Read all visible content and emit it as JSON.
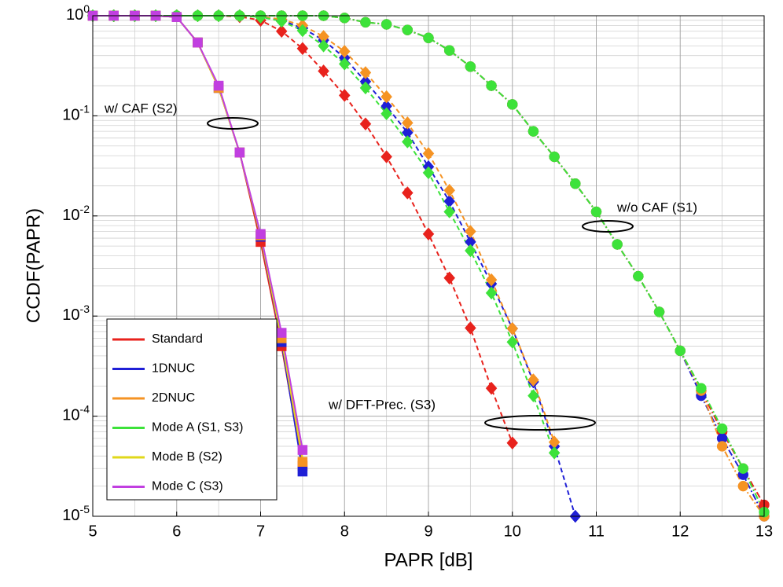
{
  "chart_data": {
    "type": "line",
    "xlabel": "PAPR [dB]",
    "ylabel": "CCDF(PAPR)",
    "xlim": [
      5,
      13
    ],
    "xticks": [
      5,
      6,
      7,
      8,
      9,
      10,
      11,
      12,
      13
    ],
    "ylim": [
      1e-05,
      1
    ],
    "log_y": true,
    "grid": true,
    "legend": "lower left",
    "yticks": [
      {
        "value": 1,
        "label": "10",
        "exponent": "0"
      },
      {
        "value": 0.1,
        "label": "10",
        "exponent": "-1"
      },
      {
        "value": 0.01,
        "label": "10",
        "exponent": "-2"
      },
      {
        "value": 0.001,
        "label": "10",
        "exponent": "-3"
      },
      {
        "value": 0.0001,
        "label": "10",
        "exponent": "-4"
      },
      {
        "value": 1e-05,
        "label": "10",
        "exponent": "-5"
      }
    ],
    "annotations": [
      "w/ CAF (S2)",
      "w/o CAF (S1)",
      "w/ DFT-Prec. (S3)"
    ],
    "series": [
      {
        "name": "Standard",
        "color": "#e8221c",
        "curves": [
          {
            "marker": "square",
            "dash": "solid",
            "x": [
              5,
              5.25,
              5.5,
              5.75,
              6,
              6.25,
              6.5,
              6.75,
              7,
              7.25,
              7.5
            ],
            "values": [
              1,
              1,
              1,
              1,
              0.97,
              0.54,
              0.19,
              0.043,
              0.0055,
              0.0005,
              3.2e-05
            ]
          },
          {
            "marker": "diamond",
            "dash": "dashed",
            "x": [
              5,
              5.25,
              5.5,
              5.75,
              6,
              6.25,
              6.5,
              6.75,
              7,
              7.25,
              7.5,
              7.75,
              8,
              8.25,
              8.5,
              8.75,
              9,
              9.25,
              9.5,
              9.75,
              10
            ],
            "values": [
              1,
              1,
              1,
              1,
              1,
              1,
              1,
              0.98,
              0.9,
              0.7,
              0.47,
              0.28,
              0.16,
              0.083,
              0.039,
              0.017,
              0.0066,
              0.0024,
              0.00076,
              0.00019,
              5.4e-05
            ]
          },
          {
            "marker": "circle",
            "dash": "dashdot",
            "x": [
              5,
              5.25,
              5.5,
              5.75,
              6,
              6.25,
              6.5,
              6.75,
              7,
              7.25,
              7.5,
              7.75,
              8,
              8.25,
              8.5,
              8.75,
              9,
              9.25,
              9.5,
              9.75,
              10,
              10.25,
              10.5,
              10.75,
              11,
              11.25,
              11.5,
              11.75,
              12,
              12.25,
              12.5,
              12.75,
              13
            ],
            "values": [
              1,
              1,
              1,
              1,
              1,
              1,
              1,
              1,
              1,
              1,
              1,
              1,
              0.95,
              0.86,
              0.82,
              0.72,
              0.6,
              0.45,
              0.31,
              0.2,
              0.13,
              0.07,
              0.039,
              0.021,
              0.011,
              0.0052,
              0.0025,
              0.0011,
              0.00045,
              0.00018,
              7e-05,
              3e-05,
              1.3e-05
            ]
          }
        ]
      },
      {
        "name": "1DNUC",
        "color": "#1f1fd6",
        "curves": [
          {
            "marker": "square",
            "dash": "solid",
            "x": [
              5,
              5.25,
              5.5,
              5.75,
              6,
              6.25,
              6.5,
              6.75,
              7,
              7.25,
              7.5
            ],
            "values": [
              1,
              1,
              1,
              1,
              0.97,
              0.54,
              0.19,
              0.043,
              0.0062,
              0.00055,
              2.8e-05
            ]
          },
          {
            "marker": "diamond",
            "dash": "dashed",
            "x": [
              5,
              5.25,
              5.5,
              5.75,
              6,
              6.25,
              6.5,
              6.75,
              7,
              7.25,
              7.5,
              7.75,
              8,
              8.25,
              8.5,
              8.75,
              9,
              9.25,
              9.5,
              9.75,
              10,
              10.25,
              10.5,
              10.75
            ],
            "values": [
              1,
              1,
              1,
              1,
              1,
              1,
              1,
              1,
              0.98,
              0.9,
              0.75,
              0.57,
              0.38,
              0.22,
              0.125,
              0.068,
              0.031,
              0.014,
              0.0055,
              0.0021,
              0.00075,
              0.00022,
              5e-05,
              1e-05
            ]
          },
          {
            "marker": "circle",
            "dash": "dashdot",
            "x": [
              5,
              5.25,
              5.5,
              5.75,
              6,
              6.25,
              6.5,
              6.75,
              7,
              7.25,
              7.5,
              7.75,
              8,
              8.25,
              8.5,
              8.75,
              9,
              9.25,
              9.5,
              9.75,
              10,
              10.25,
              10.5,
              10.75,
              11,
              11.25,
              11.5,
              11.75,
              12,
              12.25,
              12.5,
              12.75,
              13
            ],
            "values": [
              1,
              1,
              1,
              1,
              1,
              1,
              1,
              1,
              1,
              1,
              1,
              1,
              0.95,
              0.86,
              0.82,
              0.72,
              0.6,
              0.45,
              0.31,
              0.2,
              0.13,
              0.07,
              0.039,
              0.021,
              0.011,
              0.0052,
              0.0025,
              0.0011,
              0.00045,
              0.00016,
              6e-05,
              2.6e-05,
              1e-05
            ]
          }
        ]
      },
      {
        "name": "2DNUC",
        "color": "#f59323",
        "curves": [
          {
            "marker": "square",
            "dash": "solid",
            "x": [
              5,
              5.25,
              5.5,
              5.75,
              6,
              6.25,
              6.5,
              6.75,
              7,
              7.25,
              7.5
            ],
            "values": [
              1,
              1,
              1,
              1,
              0.97,
              0.54,
              0.19,
              0.043,
              0.0064,
              0.0006,
              3.5e-05
            ]
          },
          {
            "marker": "diamond",
            "dash": "dashed",
            "x": [
              5,
              5.25,
              5.5,
              5.75,
              6,
              6.25,
              6.5,
              6.75,
              7,
              7.25,
              7.5,
              7.75,
              8,
              8.25,
              8.5,
              8.75,
              9,
              9.25,
              9.5,
              9.75,
              10,
              10.25,
              10.5
            ],
            "values": [
              1,
              1,
              1,
              1,
              1,
              1,
              1,
              1,
              0.98,
              0.92,
              0.8,
              0.62,
              0.44,
              0.27,
              0.155,
              0.085,
              0.042,
              0.018,
              0.007,
              0.0023,
              0.00075,
              0.00023,
              5.5e-05
            ]
          },
          {
            "marker": "circle",
            "dash": "dashdot",
            "x": [
              5,
              5.25,
              5.5,
              5.75,
              6,
              6.25,
              6.5,
              6.75,
              7,
              7.25,
              7.5,
              7.75,
              8,
              8.25,
              8.5,
              8.75,
              9,
              9.25,
              9.5,
              9.75,
              10,
              10.25,
              10.5,
              10.75,
              11,
              11.25,
              11.5,
              11.75,
              12,
              12.25,
              12.5,
              12.75,
              13
            ],
            "values": [
              1,
              1,
              1,
              1,
              1,
              1,
              1,
              1,
              1,
              1,
              1,
              1,
              0.95,
              0.86,
              0.82,
              0.72,
              0.6,
              0.45,
              0.31,
              0.2,
              0.13,
              0.07,
              0.039,
              0.021,
              0.011,
              0.0052,
              0.0025,
              0.0011,
              0.00045,
              0.00018,
              5e-05,
              2e-05,
              1e-05
            ]
          }
        ]
      },
      {
        "name": "Mode A (S1, S3)",
        "color": "#3de23a",
        "curves": [
          {
            "marker": "diamond",
            "dash": "dashed",
            "x": [
              5,
              5.25,
              5.5,
              5.75,
              6,
              6.25,
              6.5,
              6.75,
              7,
              7.25,
              7.5,
              7.75,
              8,
              8.25,
              8.5,
              8.75,
              9,
              9.25,
              9.5,
              9.75,
              10,
              10.25,
              10.5
            ],
            "values": [
              1,
              1,
              1,
              1,
              1,
              1,
              1,
              1,
              0.97,
              0.88,
              0.71,
              0.5,
              0.33,
              0.19,
              0.105,
              0.055,
              0.027,
              0.011,
              0.0045,
              0.0017,
              0.00055,
              0.00016,
              4.3e-05
            ]
          },
          {
            "marker": "circle",
            "dash": "dashdot",
            "x": [
              5,
              5.25,
              5.5,
              5.75,
              6,
              6.25,
              6.5,
              6.75,
              7,
              7.25,
              7.5,
              7.75,
              8,
              8.25,
              8.5,
              8.75,
              9,
              9.25,
              9.5,
              9.75,
              10,
              10.25,
              10.5,
              10.75,
              11,
              11.25,
              11.5,
              11.75,
              12,
              12.25,
              12.5,
              12.75,
              13
            ],
            "values": [
              1,
              1,
              1,
              1,
              1,
              1,
              1,
              1,
              1,
              1,
              1,
              1,
              0.95,
              0.86,
              0.82,
              0.72,
              0.6,
              0.45,
              0.31,
              0.2,
              0.13,
              0.07,
              0.039,
              0.021,
              0.011,
              0.0052,
              0.0025,
              0.0011,
              0.00045,
              0.00019,
              7.5e-05,
              3e-05,
              1.1e-05
            ]
          }
        ]
      },
      {
        "name": "Mode B (S2)",
        "color": "#e0d81a",
        "curves": [
          {
            "marker": "none",
            "dash": "solid",
            "x": [
              5,
              5.25,
              5.5,
              5.75,
              6,
              6.25,
              6.5,
              6.75,
              7,
              7.25,
              7.5
            ],
            "values": [
              1,
              1,
              1,
              1,
              0.97,
              0.54,
              0.19,
              0.043,
              0.0063,
              0.00058,
              3.8e-05
            ]
          }
        ]
      },
      {
        "name": "Mode C (S3)",
        "color": "#c13fe0",
        "curves": [
          {
            "marker": "square",
            "dash": "solid",
            "x": [
              5,
              5.25,
              5.5,
              5.75,
              6,
              6.25,
              6.5,
              6.75,
              7,
              7.25,
              7.5
            ],
            "values": [
              1,
              1,
              1,
              1,
              0.97,
              0.54,
              0.2,
              0.043,
              0.0066,
              0.00068,
              4.6e-05
            ]
          }
        ]
      }
    ]
  }
}
